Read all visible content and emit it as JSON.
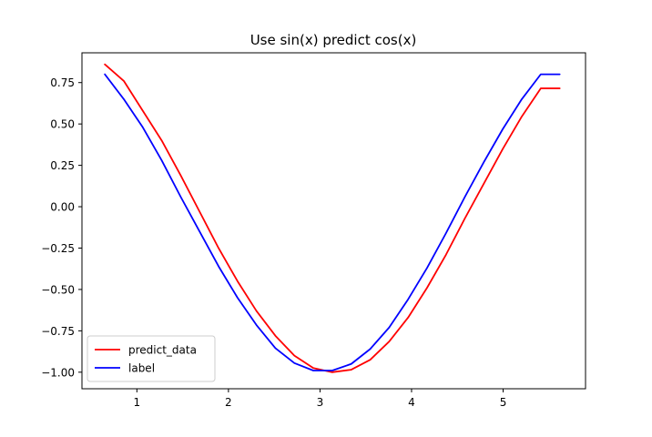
{
  "chart_data": {
    "type": "line",
    "title": "Use sin(x) predict cos(x)",
    "xlabel": "",
    "ylabel": "",
    "xlim": [
      0.4,
      5.9
    ],
    "ylim": [
      -1.1,
      0.93
    ],
    "xticks": [
      1,
      2,
      3,
      4,
      5
    ],
    "yticks": [
      0.75,
      0.5,
      0.25,
      0.0,
      -0.25,
      -0.5,
      -0.75,
      -1.0
    ],
    "xtick_labels": [
      "1",
      "2",
      "3",
      "4",
      "5"
    ],
    "ytick_labels": [
      "0.75",
      "0.50",
      "0.25",
      "0.00",
      "−0.25",
      "−0.50",
      "−0.75",
      "−1.00"
    ],
    "grid": false,
    "legend": {
      "position": "lower-left"
    },
    "x": [
      0.65,
      0.857,
      1.064,
      1.271,
      1.478,
      1.685,
      1.892,
      2.099,
      2.306,
      2.513,
      2.72,
      2.927,
      3.134,
      3.341,
      3.548,
      3.755,
      3.962,
      4.169,
      4.376,
      4.583,
      4.79,
      4.997,
      5.204,
      5.411,
      5.618
    ],
    "series": [
      {
        "name": "predict_data",
        "color": "#ff0000",
        "values": [
          0.86,
          0.76,
          0.58,
          0.4,
          0.19,
          -0.03,
          -0.25,
          -0.45,
          -0.63,
          -0.78,
          -0.9,
          -0.975,
          -1.0,
          -0.985,
          -0.925,
          -0.815,
          -0.67,
          -0.49,
          -0.29,
          -0.07,
          0.14,
          0.35,
          0.545,
          0.715,
          0.715
        ]
      },
      {
        "name": "label",
        "color": "#0000ff",
        "values": [
          0.8,
          0.65,
          0.48,
          0.28,
          0.06,
          -0.15,
          -0.36,
          -0.55,
          -0.715,
          -0.855,
          -0.945,
          -0.99,
          -0.99,
          -0.95,
          -0.86,
          -0.73,
          -0.56,
          -0.37,
          -0.16,
          0.06,
          0.27,
          0.47,
          0.65,
          0.8,
          0.8
        ]
      }
    ]
  }
}
